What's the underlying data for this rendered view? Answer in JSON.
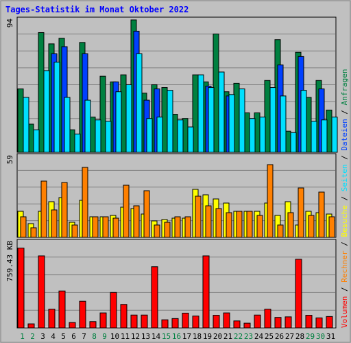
{
  "title": "Tages-Statistik im Monat Oktober 2022",
  "colors": {
    "background": "#c0c0c0",
    "frame_outer": "#ffffff",
    "grid": "#808080",
    "title": "#0000ff",
    "weekday_label": "#000000",
    "weekend_label": "#008040",
    "anfragen": "#008040",
    "dateien": "#0040ff",
    "seiten": "#00e0ff",
    "besuche": "#ffff00",
    "rechner": "#ff8000",
    "volumen": "#ff0000"
  },
  "chart_data": {
    "type": "bar",
    "title": "Tages-Statistik im Monat Oktober 2022",
    "days": [
      "1",
      "2",
      "3",
      "4",
      "5",
      "6",
      "7",
      "8",
      "9",
      "10",
      "11",
      "12",
      "13",
      "14",
      "15",
      "16",
      "17",
      "18",
      "19",
      "20",
      "21",
      "22",
      "23",
      "24",
      "25",
      "26",
      "27",
      "28",
      "29",
      "30",
      "31"
    ],
    "weekend_days": [
      "1",
      "2",
      "8",
      "9",
      "15",
      "16",
      "22",
      "23",
      "29",
      "30"
    ],
    "panels": [
      {
        "id": "top",
        "scale_label": "94",
        "ymax": 94,
        "grid": true,
        "series": [
          {
            "name": "Anfragen",
            "color": "#008040",
            "values": [
              45,
              20,
              85,
              77,
              81,
              16,
              78,
              25,
              54,
              50,
              55,
              94,
              42,
              48,
              46,
              27,
              24,
              55,
              50,
              84,
              43,
              49,
              28,
              28,
              51,
              80,
              15,
              71,
              39,
              51,
              30
            ]
          },
          {
            "name": "Dateien",
            "color": "#0040ff",
            "values": [
              0,
              0,
              0,
              70,
              75,
              0,
              70,
              0,
              0,
              50,
              0,
              86,
              37,
              45,
              0,
              0,
              0,
              0,
              47,
              0,
              40,
              0,
              0,
              0,
              0,
              62,
              0,
              68,
              0,
              45,
              0
            ]
          },
          {
            "name": "Seiten",
            "color": "#00e0ff",
            "values": [
              39,
              16,
              58,
              64,
              39,
              13,
              37,
              23,
              22,
              43,
              48,
              70,
              24,
              25,
              44,
              23,
              18,
              55,
              46,
              57,
              41,
              45,
              24,
              25,
              46,
              40,
              14,
              44,
              22,
              23,
              25
            ]
          }
        ],
        "axis_label": {
          "parts": [
            {
              "text": "Seiten",
              "color": "#00e0ff"
            },
            {
              "text": " / ",
              "color": "#000000"
            },
            {
              "text": "Dateien",
              "color": "#0040ff"
            },
            {
              "text": " / ",
              "color": "#000000"
            },
            {
              "text": "Anfragen",
              "color": "#008040"
            }
          ]
        }
      },
      {
        "id": "middle",
        "scale_label": "59",
        "ymax": 59,
        "grid": true,
        "series": [
          {
            "name": "Besuche",
            "color": "#ffff00",
            "values": [
              19,
              10,
              19,
              26,
              29,
              11,
              27,
              15,
              15,
              16,
              22,
              21,
              17,
              12,
              13,
              14,
              14,
              35,
              31,
              28,
              25,
              19,
              19,
              19,
              25,
              16,
              26,
              9,
              19,
              18,
              17
            ]
          },
          {
            "name": "Rechner",
            "color": "#ff8000",
            "values": [
              15,
              7,
              41,
              20,
              40,
              9,
              51,
              15,
              15,
              14,
              38,
              23,
              34,
              9,
              11,
              15,
              15,
              30,
              23,
              21,
              18,
              19,
              19,
              16,
              53,
              9,
              18,
              36,
              16,
              33,
              15
            ]
          }
        ],
        "axis_label": {
          "parts": [
            {
              "text": "Rechner",
              "color": "#ff8000"
            },
            {
              "text": " / ",
              "color": "#000000"
            },
            {
              "text": "Besuche",
              "color": "#ffff00"
            }
          ]
        }
      },
      {
        "id": "bottom",
        "scale_label": "759.43 KB",
        "ymax": 759.43,
        "grid": true,
        "series": [
          {
            "name": "Volumen",
            "color": "#ff0000",
            "values": [
              707,
              36,
              638,
              166,
              327,
              48,
              236,
              56,
              133,
              314,
              208,
              114,
              114,
              542,
              72,
              83,
              131,
              105,
              638,
              112,
              133,
              62,
              42,
              114,
              166,
              93,
              98,
              608,
              112,
              89,
              101
            ]
          }
        ],
        "axis_label": {
          "parts": [
            {
              "text": "Volumen",
              "color": "#ff0000"
            }
          ]
        }
      }
    ],
    "separators": " / "
  }
}
